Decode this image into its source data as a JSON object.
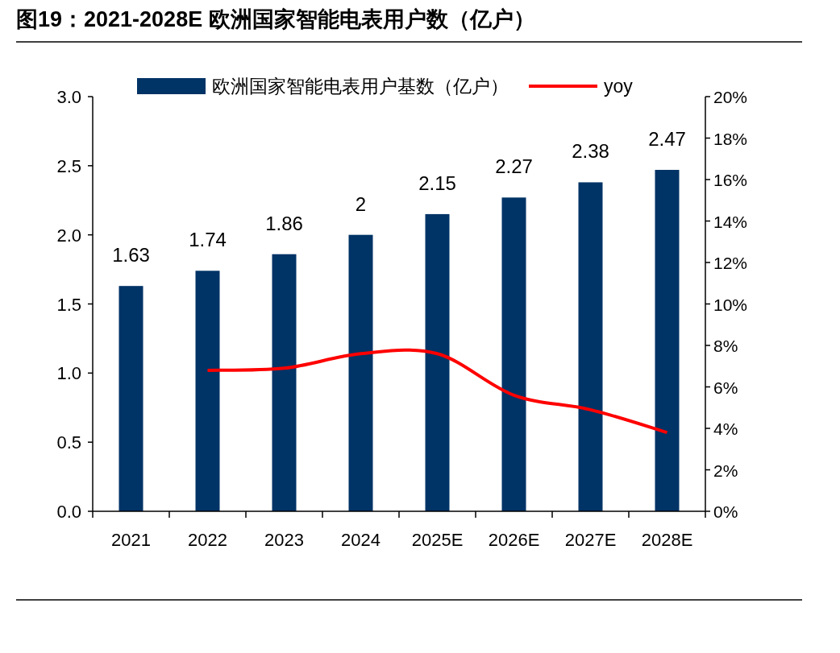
{
  "chart_data": {
    "type": "bar",
    "title": "图19：2021-2028E 欧洲国家智能电表用户数（亿户）",
    "categories": [
      "2021",
      "2022",
      "2023",
      "2024",
      "2025E",
      "2026E",
      "2027E",
      "2028E"
    ],
    "series": [
      {
        "name": "欧洲国家智能电表用户基数（亿户）",
        "color": "#003366",
        "values": [
          1.63,
          1.74,
          1.86,
          2,
          2.15,
          2.27,
          2.38,
          2.47
        ],
        "value_labels": [
          "1.63",
          "1.74",
          "1.86",
          "2",
          "2.15",
          "2.27",
          "2.38",
          "2.47"
        ]
      },
      {
        "name": "yoy",
        "type": "line",
        "axis": "y2",
        "color": "#ff0000",
        "values": [
          null,
          6.8,
          6.9,
          7.6,
          7.6,
          5.6,
          4.9,
          3.8
        ]
      }
    ],
    "ylim": [
      0,
      3
    ],
    "yticks": [
      {
        "value": 0,
        "label": "0.0"
      },
      {
        "value": 0.5,
        "label": "0.5"
      },
      {
        "value": 1,
        "label": "1.0"
      },
      {
        "value": 1.5,
        "label": "1.5"
      },
      {
        "value": 2,
        "label": "2.0"
      },
      {
        "value": 2.5,
        "label": "2.5"
      },
      {
        "value": 3,
        "label": "3.0"
      }
    ],
    "y2lim": [
      0,
      20
    ],
    "y2ticks": [
      {
        "value": 0,
        "label": "0%"
      },
      {
        "value": 2,
        "label": "2%"
      },
      {
        "value": 4,
        "label": "4%"
      },
      {
        "value": 6,
        "label": "6%"
      },
      {
        "value": 8,
        "label": "8%"
      },
      {
        "value": 10,
        "label": "10%"
      },
      {
        "value": 12,
        "label": "12%"
      },
      {
        "value": 14,
        "label": "14%"
      },
      {
        "value": 16,
        "label": "16%"
      },
      {
        "value": 18,
        "label": "18%"
      },
      {
        "value": 20,
        "label": "20%"
      }
    ],
    "legend": "top"
  }
}
